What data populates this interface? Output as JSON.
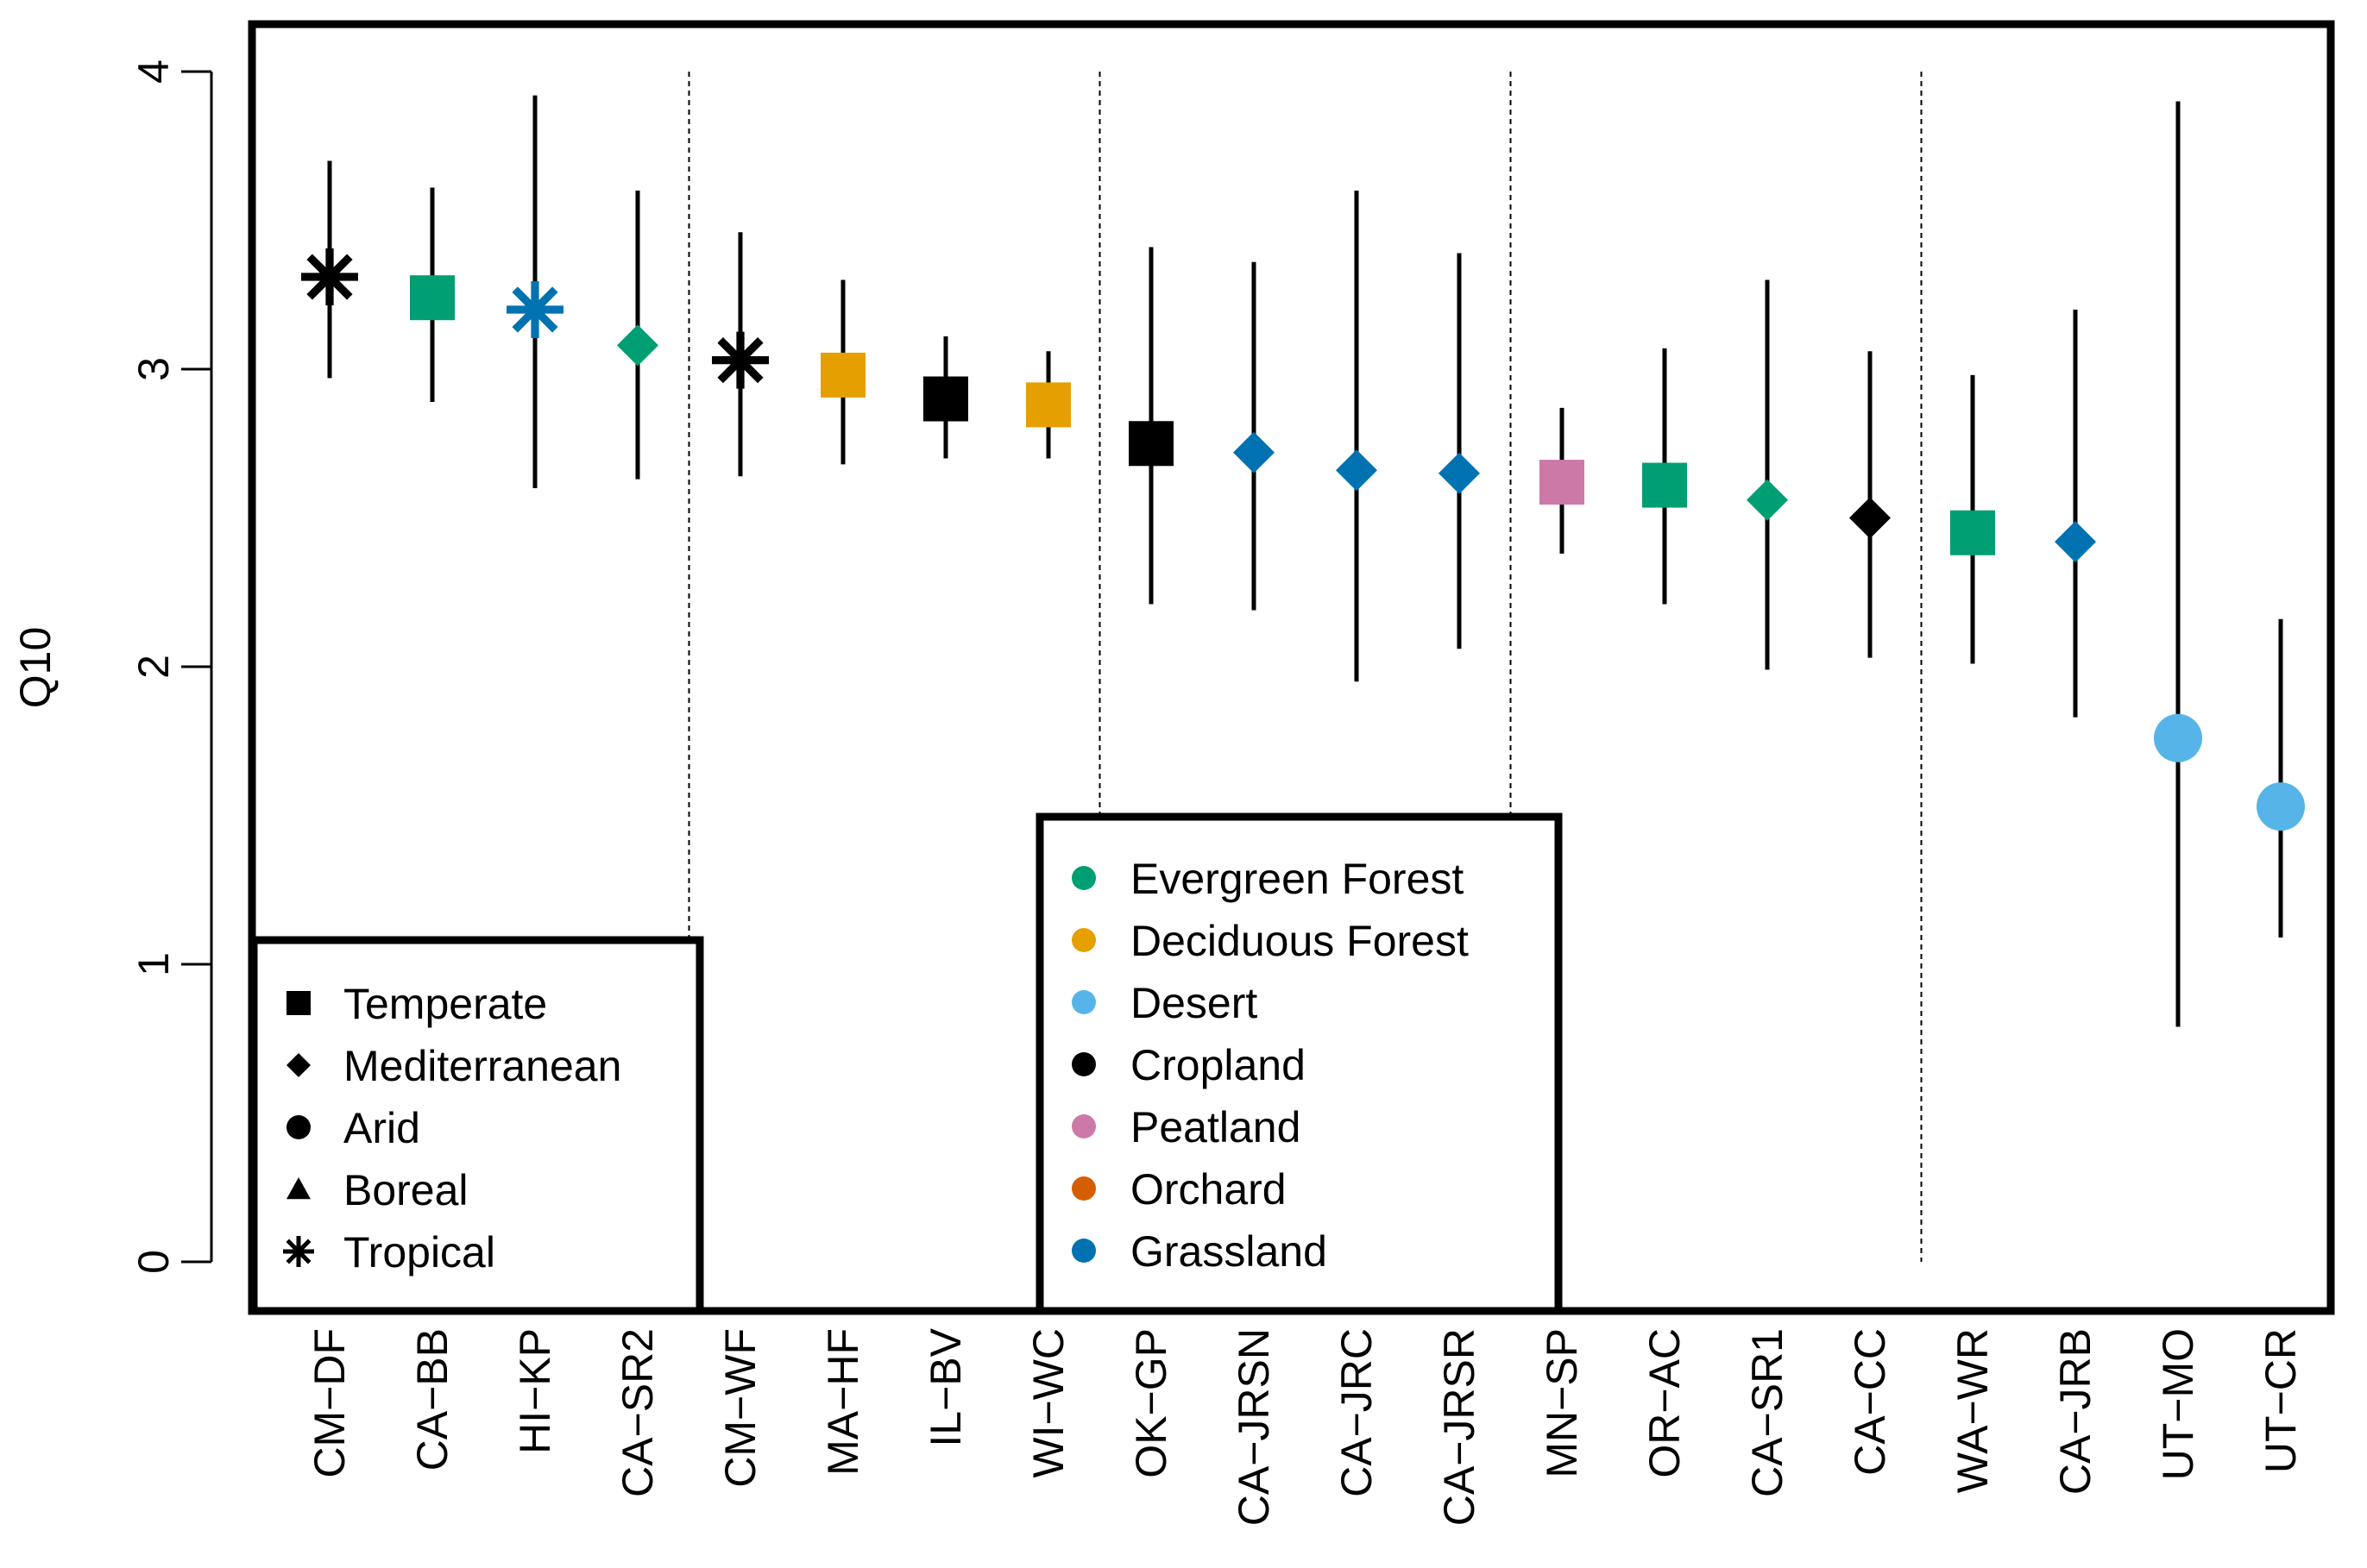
{
  "chart_data": {
    "type": "scatter",
    "title": "",
    "xlabel": "",
    "ylabel": "Q10",
    "ylim": [
      0,
      4
    ],
    "yticks": [
      "0",
      "1",
      "2",
      "3",
      "4"
    ],
    "grid": false,
    "group_separators_after": [
      "CA-SR2",
      "WI-WC",
      "CA-JRSR",
      "CA-CC",
      "UT-CR"
    ],
    "points": [
      {
        "site": "CM−DF",
        "climate": "Tropical",
        "land_cover": "Cropland",
        "q10": 3.31,
        "low": 2.97,
        "high": 3.7
      },
      {
        "site": "CA−BB",
        "climate": "Temperate",
        "land_cover": "Evergreen Forest",
        "q10": 3.24,
        "low": 2.89,
        "high": 3.61
      },
      {
        "site": "HI−KP",
        "climate": "Tropical",
        "land_cover": "Grassland",
        "q10": 3.2,
        "low": 2.6,
        "high": 3.92
      },
      {
        "site": "CA−SR2",
        "climate": "Mediterranean",
        "land_cover": "Evergreen Forest",
        "q10": 3.08,
        "low": 2.63,
        "high": 3.6
      },
      {
        "site": "CM−WF",
        "climate": "Tropical",
        "land_cover": "Cropland",
        "q10": 3.03,
        "low": 2.64,
        "high": 3.46
      },
      {
        "site": "MA−HF",
        "climate": "Temperate",
        "land_cover": "Deciduous Forest",
        "q10": 2.98,
        "low": 2.68,
        "high": 3.3
      },
      {
        "site": "IL−BV",
        "climate": "Temperate",
        "land_cover": "Cropland",
        "q10": 2.9,
        "low": 2.7,
        "high": 3.11
      },
      {
        "site": "WI−WC",
        "climate": "Temperate",
        "land_cover": "Deciduous Forest",
        "q10": 2.88,
        "low": 2.7,
        "high": 3.06
      },
      {
        "site": "OK−GP",
        "climate": "Temperate",
        "land_cover": "Cropland",
        "q10": 2.75,
        "low": 2.21,
        "high": 3.41
      },
      {
        "site": "CA−JRSN",
        "climate": "Mediterranean",
        "land_cover": "Grassland",
        "q10": 2.72,
        "low": 2.19,
        "high": 3.36
      },
      {
        "site": "CA−JRC",
        "climate": "Mediterranean",
        "land_cover": "Grassland",
        "q10": 2.66,
        "low": 1.95,
        "high": 3.6
      },
      {
        "site": "CA−JRSR",
        "climate": "Mediterranean",
        "land_cover": "Grassland",
        "q10": 2.65,
        "low": 2.06,
        "high": 3.39
      },
      {
        "site": "MN−SP",
        "climate": "Temperate",
        "land_cover": "Peatland",
        "q10": 2.62,
        "low": 2.38,
        "high": 2.87
      },
      {
        "site": "OR−AC",
        "climate": "Temperate",
        "land_cover": "Evergreen Forest",
        "q10": 2.61,
        "low": 2.21,
        "high": 3.07
      },
      {
        "site": "CA−SR1",
        "climate": "Mediterranean",
        "land_cover": "Evergreen Forest",
        "q10": 2.56,
        "low": 1.99,
        "high": 3.3
      },
      {
        "site": "CA−CC",
        "climate": "Mediterranean",
        "land_cover": "Cropland",
        "q10": 2.5,
        "low": 2.03,
        "high": 3.06
      },
      {
        "site": "WA−WR",
        "climate": "Temperate",
        "land_cover": "Evergreen Forest",
        "q10": 2.45,
        "low": 2.01,
        "high": 2.98
      },
      {
        "site": "CA−JRB",
        "climate": "Mediterranean",
        "land_cover": "Grassland",
        "q10": 2.42,
        "low": 1.83,
        "high": 3.2
      },
      {
        "site": "UT−MO",
        "climate": "Arid",
        "land_cover": "Desert",
        "q10": 1.76,
        "low": 0.79,
        "high": 3.9
      },
      {
        "site": "UT−CR",
        "climate": "Arid",
        "land_cover": "Desert",
        "q10": 1.53,
        "low": 1.09,
        "high": 2.16
      }
    ],
    "legend_climate": [
      {
        "label": "Temperate",
        "shape": "square"
      },
      {
        "label": "Mediterranean",
        "shape": "diamond"
      },
      {
        "label": "Arid",
        "shape": "circle"
      },
      {
        "label": "Boreal",
        "shape": "triangle"
      },
      {
        "label": "Tropical",
        "shape": "asterisk"
      }
    ],
    "legend_land_cover": [
      {
        "label": "Evergreen Forest",
        "color": "#009E73"
      },
      {
        "label": "Deciduous Forest",
        "color": "#E69F00"
      },
      {
        "label": "Desert",
        "color": "#56B4E9"
      },
      {
        "label": "Cropland",
        "color": "#000000"
      },
      {
        "label": "Peatland",
        "color": "#CC79A7"
      },
      {
        "label": "Orchard",
        "color": "#D55E00"
      },
      {
        "label": "Grassland",
        "color": "#0072B2"
      }
    ],
    "legend_positions": [
      "bottom-left",
      "bottom-center"
    ]
  }
}
